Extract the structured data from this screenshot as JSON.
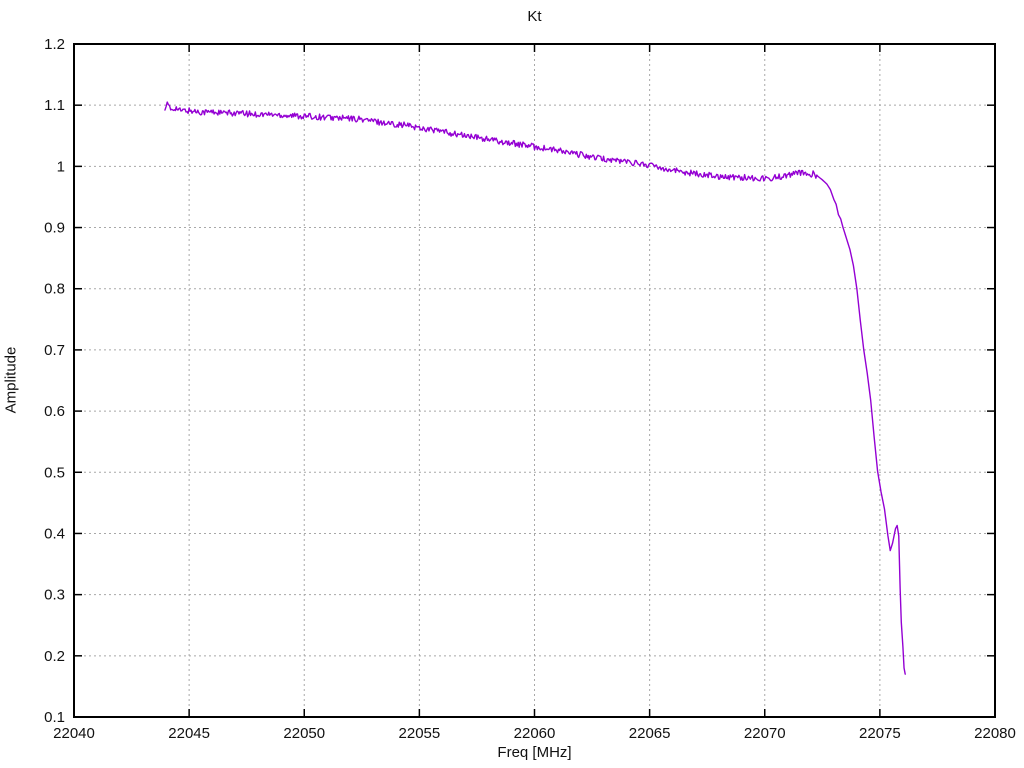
{
  "chart_data": {
    "type": "line",
    "title": "Kt",
    "xlabel": "Freq [MHz]",
    "ylabel": "Amplitude",
    "xlim": [
      22040,
      22080
    ],
    "ylim": [
      0.1,
      1.2
    ],
    "grid": true,
    "legend": "none",
    "line_color": "#9400d3",
    "x_ticks": [
      {
        "v": 22040,
        "label": "22040"
      },
      {
        "v": 22045,
        "label": "22045"
      },
      {
        "v": 22050,
        "label": "22050"
      },
      {
        "v": 22055,
        "label": "22055"
      },
      {
        "v": 22060,
        "label": "22060"
      },
      {
        "v": 22065,
        "label": "22065"
      },
      {
        "v": 22070,
        "label": "22070"
      },
      {
        "v": 22075,
        "label": "22075"
      },
      {
        "v": 22080,
        "label": "22080"
      }
    ],
    "y_ticks": [
      {
        "v": 0.1,
        "label": "0.1"
      },
      {
        "v": 0.2,
        "label": "0.2"
      },
      {
        "v": 0.3,
        "label": "0.3"
      },
      {
        "v": 0.4,
        "label": "0.4"
      },
      {
        "v": 0.5,
        "label": "0.5"
      },
      {
        "v": 0.6,
        "label": "0.6"
      },
      {
        "v": 0.7,
        "label": "0.7"
      },
      {
        "v": 0.8,
        "label": "0.8"
      },
      {
        "v": 0.9,
        "label": "0.9"
      },
      {
        "v": 1.0,
        "label": "1"
      },
      {
        "v": 1.1,
        "label": "1.1"
      },
      {
        "v": 1.2,
        "label": "1.2"
      }
    ],
    "series": [
      {
        "name": "Kt",
        "noise_amplitude": 0.005,
        "noise_until_x": 22072.3,
        "points": [
          [
            22043.95,
            1.097
          ],
          [
            22044.05,
            1.102
          ],
          [
            22044.2,
            1.092
          ],
          [
            22044.4,
            1.096
          ],
          [
            22044.6,
            1.091
          ],
          [
            22045.0,
            1.091
          ],
          [
            22045.5,
            1.089
          ],
          [
            22046.0,
            1.089
          ],
          [
            22046.5,
            1.087
          ],
          [
            22047.0,
            1.087
          ],
          [
            22047.5,
            1.086
          ],
          [
            22048.0,
            1.085
          ],
          [
            22048.5,
            1.085
          ],
          [
            22049.0,
            1.084
          ],
          [
            22049.5,
            1.083
          ],
          [
            22050.0,
            1.082
          ],
          [
            22050.5,
            1.081
          ],
          [
            22051.0,
            1.08
          ],
          [
            22051.5,
            1.079
          ],
          [
            22052.0,
            1.078
          ],
          [
            22052.5,
            1.077
          ],
          [
            22053.0,
            1.074
          ],
          [
            22053.5,
            1.071
          ],
          [
            22054.0,
            1.069
          ],
          [
            22054.5,
            1.067
          ],
          [
            22055.0,
            1.063
          ],
          [
            22055.5,
            1.06
          ],
          [
            22056.0,
            1.057
          ],
          [
            22056.5,
            1.053
          ],
          [
            22057.0,
            1.05
          ],
          [
            22057.5,
            1.047
          ],
          [
            22058.0,
            1.044
          ],
          [
            22058.5,
            1.041
          ],
          [
            22059.0,
            1.038
          ],
          [
            22059.5,
            1.035
          ],
          [
            22060.0,
            1.032
          ],
          [
            22060.5,
            1.029
          ],
          [
            22061.0,
            1.026
          ],
          [
            22061.5,
            1.022
          ],
          [
            22062.0,
            1.019
          ],
          [
            22062.5,
            1.015
          ],
          [
            22063.0,
            1.012
          ],
          [
            22063.5,
            1.01
          ],
          [
            22064.0,
            1.008
          ],
          [
            22064.5,
            1.005
          ],
          [
            22065.0,
            1.002
          ],
          [
            22065.5,
            0.998
          ],
          [
            22066.0,
            0.994
          ],
          [
            22066.5,
            0.991
          ],
          [
            22067.0,
            0.988
          ],
          [
            22067.5,
            0.986
          ],
          [
            22068.0,
            0.984
          ],
          [
            22068.5,
            0.983
          ],
          [
            22069.0,
            0.982
          ],
          [
            22069.5,
            0.981
          ],
          [
            22070.0,
            0.98
          ],
          [
            22070.4,
            0.982
          ],
          [
            22070.8,
            0.984
          ],
          [
            22071.2,
            0.987
          ],
          [
            22071.6,
            0.99
          ],
          [
            22071.9,
            0.986
          ],
          [
            22072.1,
            0.988
          ],
          [
            22072.3,
            0.984
          ],
          [
            22072.5,
            0.978
          ],
          [
            22072.7,
            0.971
          ],
          [
            22072.85,
            0.962
          ],
          [
            22073.0,
            0.946
          ],
          [
            22073.1,
            0.938
          ],
          [
            22073.2,
            0.921
          ],
          [
            22073.3,
            0.914
          ],
          [
            22073.4,
            0.9
          ],
          [
            22073.55,
            0.882
          ],
          [
            22073.7,
            0.864
          ],
          [
            22073.85,
            0.838
          ],
          [
            22074.0,
            0.8
          ],
          [
            22074.15,
            0.748
          ],
          [
            22074.3,
            0.7
          ],
          [
            22074.45,
            0.662
          ],
          [
            22074.6,
            0.618
          ],
          [
            22074.75,
            0.558
          ],
          [
            22074.9,
            0.502
          ],
          [
            22075.05,
            0.468
          ],
          [
            22075.2,
            0.44
          ],
          [
            22075.35,
            0.396
          ],
          [
            22075.45,
            0.372
          ],
          [
            22075.55,
            0.384
          ],
          [
            22075.68,
            0.408
          ],
          [
            22075.75,
            0.413
          ],
          [
            22075.82,
            0.396
          ],
          [
            22075.88,
            0.31
          ],
          [
            22075.93,
            0.255
          ],
          [
            22076.0,
            0.215
          ],
          [
            22076.05,
            0.18
          ],
          [
            22076.1,
            0.17
          ]
        ]
      }
    ]
  }
}
